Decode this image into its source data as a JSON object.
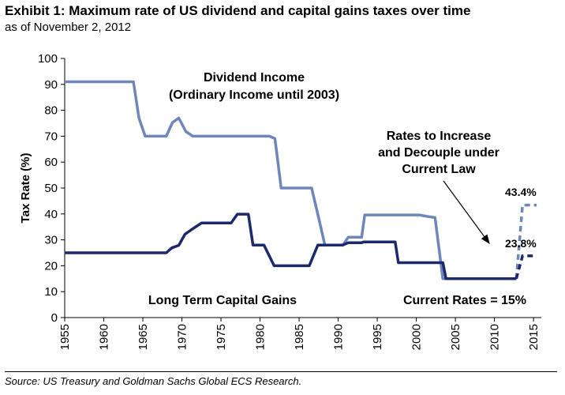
{
  "header": {
    "title": "Exhibit 1: Maximum rate of US dividend and capital gains taxes over time",
    "subtitle": "as of November 2, 2012"
  },
  "footer": {
    "source": "Source: US Treasury and Goldman Sachs Global ECS Research."
  },
  "colors": {
    "dividend": "#6f86ba",
    "capital_gains": "#1c2a6b"
  },
  "chart_data": {
    "type": "line",
    "title": "",
    "xlabel": "",
    "ylabel": "Tax Rate (%)",
    "xlim": [
      1955,
      2016
    ],
    "ylim": [
      0,
      100
    ],
    "x_ticks": [
      "1955",
      "1960",
      "1965",
      "1970",
      "1975",
      "1980",
      "1985",
      "1990",
      "1995",
      "2000",
      "2005",
      "2010",
      "2015"
    ],
    "y_ticks": [
      "0",
      "10",
      "20",
      "30",
      "40",
      "50",
      "60",
      "70",
      "80",
      "90",
      "100"
    ],
    "grid": false,
    "series": [
      {
        "name": "Dividend Income (Ordinary Income until 2003)",
        "color": "#6f86ba",
        "points": [
          [
            1955,
            91
          ],
          [
            1963.8,
            91
          ],
          [
            1964.5,
            77
          ],
          [
            1965.3,
            70
          ],
          [
            1968,
            70
          ],
          [
            1968.8,
            75.3
          ],
          [
            1969.6,
            77
          ],
          [
            1970.5,
            71.8
          ],
          [
            1971.4,
            70
          ],
          [
            1981.2,
            70
          ],
          [
            1981.9,
            69.1
          ],
          [
            1982.7,
            50
          ],
          [
            1986.6,
            50
          ],
          [
            1987.5,
            38.5
          ],
          [
            1988.3,
            28
          ],
          [
            1990.6,
            28
          ],
          [
            1991.3,
            31
          ],
          [
            1993,
            31
          ],
          [
            1993.4,
            39.6
          ],
          [
            2000.4,
            39.6
          ],
          [
            2001.3,
            39.1
          ],
          [
            2002.4,
            38.6
          ],
          [
            2003.4,
            15
          ],
          [
            2012.8,
            15
          ]
        ],
        "projection": [
          [
            2012.8,
            15
          ],
          [
            2013.6,
            43.4
          ],
          [
            2015.4,
            43.4
          ]
        ],
        "end_label": "43.4%"
      },
      {
        "name": "Long Term Capital Gains",
        "color": "#1c2a6b",
        "points": [
          [
            1955,
            25
          ],
          [
            1968,
            25
          ],
          [
            1968.7,
            26.9
          ],
          [
            1969.6,
            27.9
          ],
          [
            1970.4,
            32.2
          ],
          [
            1971.4,
            34.3
          ],
          [
            1972.5,
            36.5
          ],
          [
            1976.3,
            36.5
          ],
          [
            1977.1,
            39.9
          ],
          [
            1978.5,
            39.9
          ],
          [
            1979.1,
            28
          ],
          [
            1980.5,
            28
          ],
          [
            1981.8,
            20
          ],
          [
            1986.3,
            20
          ],
          [
            1987.4,
            28
          ],
          [
            1990.6,
            28
          ],
          [
            1991.3,
            28.9
          ],
          [
            1993,
            28.9
          ],
          [
            1993.3,
            29.2
          ],
          [
            1997.3,
            29.2
          ],
          [
            1997.7,
            21.2
          ],
          [
            2003.4,
            21.2
          ],
          [
            2003.8,
            15
          ],
          [
            2012.8,
            15
          ]
        ],
        "projection": [
          [
            2012.8,
            15
          ],
          [
            2013.6,
            23.8
          ],
          [
            2015.4,
            23.8
          ]
        ],
        "end_label": "23.8%"
      }
    ],
    "annotations": {
      "dividend_line1": "Dividend Income",
      "dividend_line2": "(Ordinary Income until 2003)",
      "capital_gains": "Long Term Capital Gains",
      "current_rates": "Current Rates = 15%",
      "increase_line1": "Rates to Increase",
      "increase_line2": "and Decouple under",
      "increase_line3": "Current Law"
    }
  }
}
